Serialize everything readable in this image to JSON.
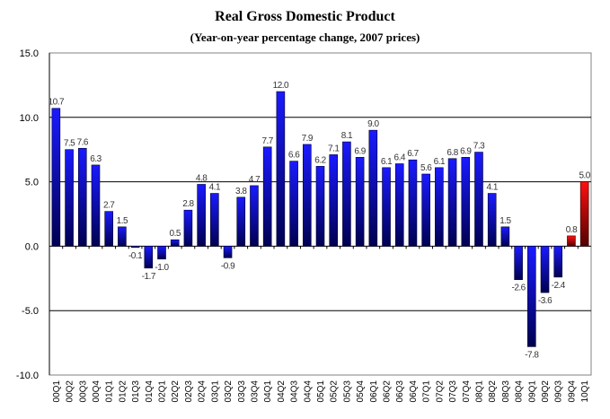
{
  "chart_data": {
    "type": "bar",
    "title": "Real Gross Domestic Product",
    "subtitle": "(Year-on-year percentage change, 2007 prices)",
    "xlabel": "",
    "ylabel": "",
    "ylim": [
      -10,
      15
    ],
    "yticks": [
      "15.0",
      "10.0",
      "5.0",
      "0.0",
      "-5.0",
      "-10.0"
    ],
    "ytick_values": [
      15,
      10,
      5,
      0,
      -5,
      -10
    ],
    "grid": "horizontal at 10, 5, 0, -5",
    "legend": "none",
    "categories": [
      "00Q1",
      "00Q2",
      "00Q3",
      "00Q4",
      "01Q1",
      "01Q2",
      "01Q3",
      "01Q4",
      "02Q1",
      "02Q2",
      "02Q3",
      "02Q4",
      "03Q1",
      "03Q2",
      "03Q3",
      "03Q4",
      "04Q1",
      "04Q2",
      "04Q3",
      "04Q4",
      "05Q1",
      "05Q2",
      "05Q3",
      "05Q4",
      "06Q1",
      "06Q2",
      "06Q3",
      "06Q4",
      "07Q1",
      "07Q2",
      "07Q3",
      "07Q4",
      "08Q1",
      "08Q2",
      "08Q3",
      "08Q4",
      "09Q1",
      "09Q2",
      "09Q3",
      "09Q4",
      "10Q1"
    ],
    "values": [
      10.7,
      7.5,
      7.6,
      6.3,
      2.7,
      1.5,
      -0.1,
      -1.7,
      -1.0,
      0.5,
      2.8,
      4.8,
      4.1,
      -0.9,
      3.8,
      4.7,
      7.7,
      12.0,
      6.6,
      7.9,
      6.2,
      7.1,
      8.1,
      6.9,
      9.0,
      6.1,
      6.4,
      6.7,
      5.6,
      6.1,
      6.8,
      6.9,
      7.3,
      4.1,
      1.5,
      -2.6,
      -7.8,
      -3.6,
      -2.4,
      0.8,
      5.0
    ],
    "labels": [
      "10.7",
      "7.5",
      "7.6",
      "6.3",
      "2.7",
      "1.5",
      "-0.1",
      "-1.7",
      "-1.0",
      "0.5",
      "2.8",
      "4.8",
      "4.1",
      "-0.9",
      "3.8",
      "4.7",
      "7.7",
      "12.0",
      "6.6",
      "7.9",
      "6.2",
      "7.1",
      "8.1",
      "6.9",
      "9.0",
      "6.1",
      "6.4",
      "6.7",
      "5.6",
      "6.1",
      "6.8",
      "6.9",
      "7.3",
      "4.1",
      "1.5",
      "-2.6",
      "-7.8",
      "-3.6",
      "-2.4",
      "0.8",
      "5.0"
    ],
    "highlight_from_index": 39,
    "colors": {
      "bar": "#1a1aff",
      "bar_dark": "#000050",
      "highlight": "#ff1010",
      "highlight_dark": "#500000",
      "grid": "#000000"
    }
  }
}
